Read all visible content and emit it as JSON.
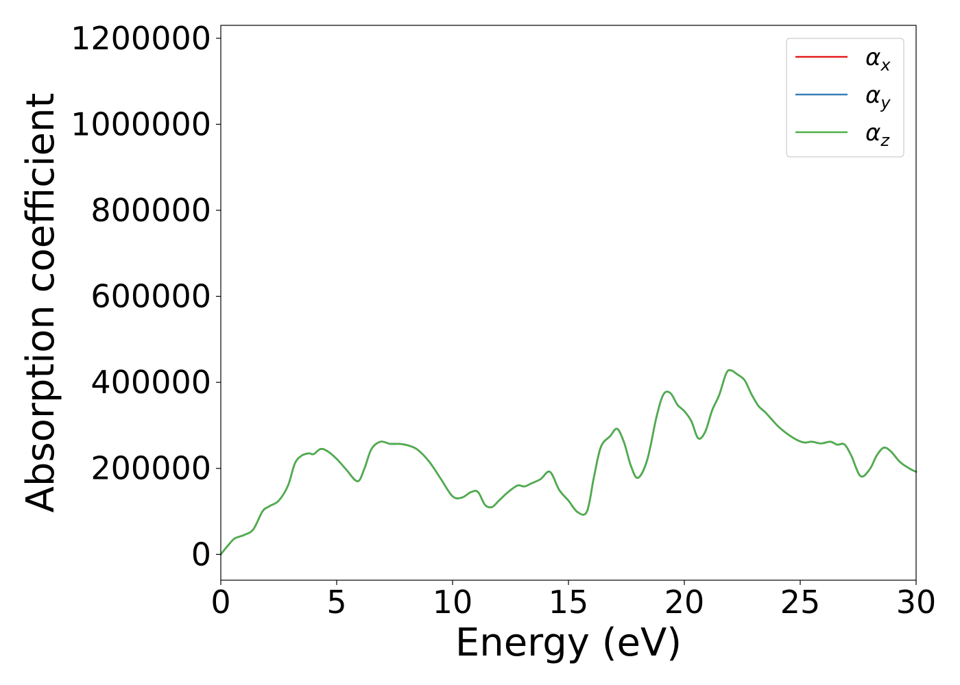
{
  "chart_data": {
    "type": "line",
    "title": "",
    "xlabel": "Energy (eV)",
    "ylabel": "Absorption coefficient",
    "xlim": [
      0,
      30
    ],
    "ylim": [
      -60000,
      1230000
    ],
    "xticks": [
      0,
      5,
      10,
      15,
      20,
      25,
      30
    ],
    "yticks": [
      0,
      200000,
      400000,
      600000,
      800000,
      1000000,
      1200000
    ],
    "xtick_labels": [
      "0",
      "5",
      "10",
      "15",
      "20",
      "25",
      "30"
    ],
    "ytick_labels": [
      "0",
      "200000",
      "400000",
      "600000",
      "800000",
      "1000000",
      "1200000"
    ],
    "grid": false,
    "legend_position": "top-right",
    "series": [
      {
        "name": "α",
        "subscript": "x",
        "color": "#e41a1c",
        "ref": "z"
      },
      {
        "name": "α",
        "subscript": "y",
        "color": "#377eb8",
        "ref": "z"
      },
      {
        "name": "α",
        "subscript": "z",
        "color": "#4daf4a",
        "ref": "self"
      }
    ],
    "x": [
      0,
      0.3,
      0.6,
      1.0,
      1.4,
      1.8,
      2.1,
      2.5,
      2.9,
      3.2,
      3.5,
      3.8,
      4.0,
      4.3,
      4.6,
      5.0,
      5.4,
      5.9,
      6.2,
      6.5,
      6.9,
      7.3,
      7.7,
      8.1,
      8.5,
      9.0,
      9.5,
      10.0,
      10.4,
      10.8,
      11.1,
      11.4,
      11.7,
      12.0,
      12.4,
      12.8,
      13.1,
      13.4,
      13.8,
      14.2,
      14.6,
      15.0,
      15.4,
      15.8,
      16.1,
      16.4,
      16.8,
      17.1,
      17.4,
      17.7,
      18.0,
      18.4,
      18.8,
      19.1,
      19.4,
      19.7,
      20.0,
      20.3,
      20.6,
      20.9,
      21.2,
      21.5,
      21.8,
      22.0,
      22.3,
      22.6,
      22.9,
      23.2,
      23.5,
      23.8,
      24.1,
      24.5,
      24.9,
      25.2,
      25.5,
      25.9,
      26.3,
      26.6,
      26.9,
      27.2,
      27.6,
      28.0,
      28.3,
      28.6,
      28.9,
      29.3,
      29.7,
      30.0
    ],
    "values": [
      0,
      20000,
      37000,
      45000,
      58000,
      100000,
      112000,
      125000,
      160000,
      212000,
      230000,
      235000,
      233000,
      245000,
      240000,
      222000,
      198000,
      170000,
      200000,
      245000,
      262000,
      257000,
      257000,
      253000,
      243000,
      215000,
      175000,
      135000,
      132000,
      145000,
      145000,
      115000,
      110000,
      125000,
      145000,
      160000,
      158000,
      165000,
      175000,
      192000,
      150000,
      125000,
      98000,
      100000,
      180000,
      250000,
      275000,
      292000,
      260000,
      205000,
      178000,
      220000,
      320000,
      372000,
      375000,
      348000,
      333000,
      310000,
      270000,
      285000,
      335000,
      370000,
      420000,
      428000,
      418000,
      405000,
      372000,
      345000,
      330000,
      312000,
      295000,
      278000,
      265000,
      260000,
      262000,
      258000,
      262000,
      255000,
      256000,
      230000,
      182000,
      198000,
      230000,
      248000,
      240000,
      215000,
      200000,
      192000
    ]
  }
}
